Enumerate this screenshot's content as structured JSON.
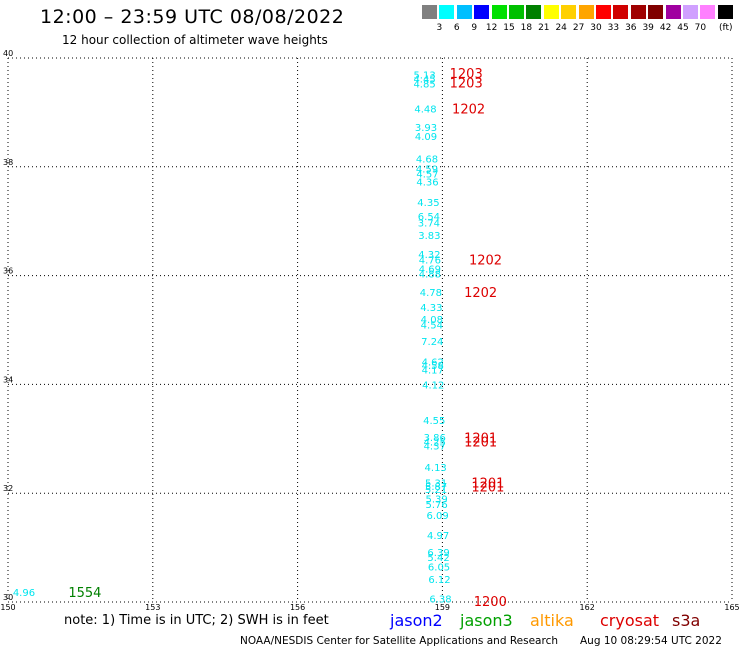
{
  "title": "12:00 – 23:59 UTC 08/08/2022",
  "subtitle": "12 hour collection of altimeter wave heights",
  "legend": {
    "swatches": [
      "#808080",
      "#00ffff",
      "#00bfff",
      "#0000ff",
      "#00e000",
      "#00c000",
      "#008000",
      "#ffff00",
      "#ffd000",
      "#ffa500",
      "#ff0000",
      "#d00000",
      "#a00000",
      "#800000",
      "#a000a0",
      "#d0a0ff",
      "#ff80ff",
      "#000000"
    ],
    "labels": [
      "3",
      "6",
      "9",
      "12",
      "15",
      "18",
      "21",
      "24",
      "27",
      "30",
      "33",
      "36",
      "39",
      "42",
      "45",
      "70"
    ],
    "unit": "(ft)"
  },
  "note": "note: 1) Time is in UTC; 2) SWH is in feet",
  "satellites": [
    {
      "name": "jason2",
      "color": "#0000ff"
    },
    {
      "name": "jason3",
      "color": "#00a000"
    },
    {
      "name": "altika",
      "color": "#ff9900"
    },
    {
      "name": "cryosat",
      "color": "#dd0000"
    },
    {
      "name": "s3a",
      "color": "#800000"
    }
  ],
  "footer_left": "NOAA/NESDIS Center for Satellite Applications and Research",
  "footer_right": "Aug 10 08:29:54 UTC 2022",
  "chart_data": {
    "type": "scatter",
    "xlim": [
      150,
      165
    ],
    "ylim": [
      30,
      40
    ],
    "xticks": [
      "150",
      "153",
      "156",
      "159",
      "162",
      "165"
    ],
    "yticks": [
      "30",
      "32",
      "34",
      "36",
      "38",
      "40"
    ],
    "grid": true,
    "swh_color": "#00e5ee",
    "time_color": "#dd0000",
    "swh_points": [
      {
        "x": 158.4,
        "y": 39.7,
        "value": "5.13"
      },
      {
        "x": 158.4,
        "y": 39.62,
        "value": "4.45"
      },
      {
        "x": 158.4,
        "y": 39.53,
        "value": "4.85"
      },
      {
        "x": 158.42,
        "y": 39.07,
        "value": "4.48"
      },
      {
        "x": 158.43,
        "y": 38.73,
        "value": "3.93"
      },
      {
        "x": 158.43,
        "y": 38.57,
        "value": "4.09"
      },
      {
        "x": 158.45,
        "y": 38.15,
        "value": "4.68"
      },
      {
        "x": 158.45,
        "y": 37.97,
        "value": "4.59"
      },
      {
        "x": 158.46,
        "y": 37.88,
        "value": "4.57"
      },
      {
        "x": 158.46,
        "y": 37.73,
        "value": "4.36"
      },
      {
        "x": 158.48,
        "y": 37.35,
        "value": "4.35"
      },
      {
        "x": 158.49,
        "y": 37.1,
        "value": "6.54"
      },
      {
        "x": 158.49,
        "y": 36.98,
        "value": "3.74"
      },
      {
        "x": 158.5,
        "y": 36.75,
        "value": "3.83"
      },
      {
        "x": 158.5,
        "y": 36.4,
        "value": "4.32"
      },
      {
        "x": 158.51,
        "y": 36.3,
        "value": "4.76"
      },
      {
        "x": 158.51,
        "y": 36.13,
        "value": "4.69"
      },
      {
        "x": 158.51,
        "y": 36.04,
        "value": "4.88"
      },
      {
        "x": 158.53,
        "y": 35.7,
        "value": "4.78"
      },
      {
        "x": 158.54,
        "y": 35.42,
        "value": "4.33"
      },
      {
        "x": 158.55,
        "y": 35.2,
        "value": "4.08"
      },
      {
        "x": 158.55,
        "y": 35.1,
        "value": "4.54"
      },
      {
        "x": 158.56,
        "y": 34.8,
        "value": "7.24"
      },
      {
        "x": 158.57,
        "y": 34.42,
        "value": "4.62"
      },
      {
        "x": 158.57,
        "y": 34.36,
        "value": "4.58"
      },
      {
        "x": 158.57,
        "y": 34.27,
        "value": "4.17"
      },
      {
        "x": 158.58,
        "y": 34.0,
        "value": "4.12"
      },
      {
        "x": 158.6,
        "y": 33.35,
        "value": "4.55"
      },
      {
        "x": 158.61,
        "y": 33.03,
        "value": "3.86"
      },
      {
        "x": 158.61,
        "y": 32.95,
        "value": "4.25"
      },
      {
        "x": 158.61,
        "y": 32.88,
        "value": "4.37"
      },
      {
        "x": 158.63,
        "y": 32.48,
        "value": "4.13"
      },
      {
        "x": 158.64,
        "y": 32.2,
        "value": "5.31"
      },
      {
        "x": 158.64,
        "y": 32.13,
        "value": "5.87"
      },
      {
        "x": 158.64,
        "y": 32.08,
        "value": "5.21"
      },
      {
        "x": 158.65,
        "y": 31.9,
        "value": "5.39"
      },
      {
        "x": 158.65,
        "y": 31.8,
        "value": "5.76"
      },
      {
        "x": 158.67,
        "y": 31.6,
        "value": "6.09"
      },
      {
        "x": 158.68,
        "y": 31.23,
        "value": "4.97"
      },
      {
        "x": 158.69,
        "y": 30.92,
        "value": "6.39"
      },
      {
        "x": 158.69,
        "y": 30.83,
        "value": "5.42"
      },
      {
        "x": 158.7,
        "y": 30.65,
        "value": "6.05"
      },
      {
        "x": 158.71,
        "y": 30.42,
        "value": "6.12"
      },
      {
        "x": 158.73,
        "y": 30.06,
        "value": "6.38"
      },
      {
        "x": 150.1,
        "y": 30.18,
        "value": "4.96"
      }
    ],
    "time_labels": [
      {
        "x": 159.15,
        "y": 39.72,
        "value": "1203",
        "color": "#dd0000"
      },
      {
        "x": 159.15,
        "y": 39.55,
        "value": "1203",
        "color": "#dd0000"
      },
      {
        "x": 159.2,
        "y": 39.07,
        "value": "1202",
        "color": "#dd0000"
      },
      {
        "x": 159.55,
        "y": 36.3,
        "value": "1202",
        "color": "#dd0000"
      },
      {
        "x": 159.45,
        "y": 35.7,
        "value": "1202",
        "color": "#dd0000"
      },
      {
        "x": 159.45,
        "y": 33.02,
        "value": "1201",
        "color": "#dd0000"
      },
      {
        "x": 159.45,
        "y": 32.95,
        "value": "1201",
        "color": "#dd0000"
      },
      {
        "x": 159.6,
        "y": 32.2,
        "value": "1201",
        "color": "#dd0000"
      },
      {
        "x": 159.6,
        "y": 32.12,
        "value": "1201",
        "color": "#dd0000"
      },
      {
        "x": 159.65,
        "y": 30.02,
        "value": "1200",
        "color": "#dd0000"
      },
      {
        "x": 151.25,
        "y": 30.18,
        "value": "1554",
        "color": "#008000"
      }
    ]
  }
}
